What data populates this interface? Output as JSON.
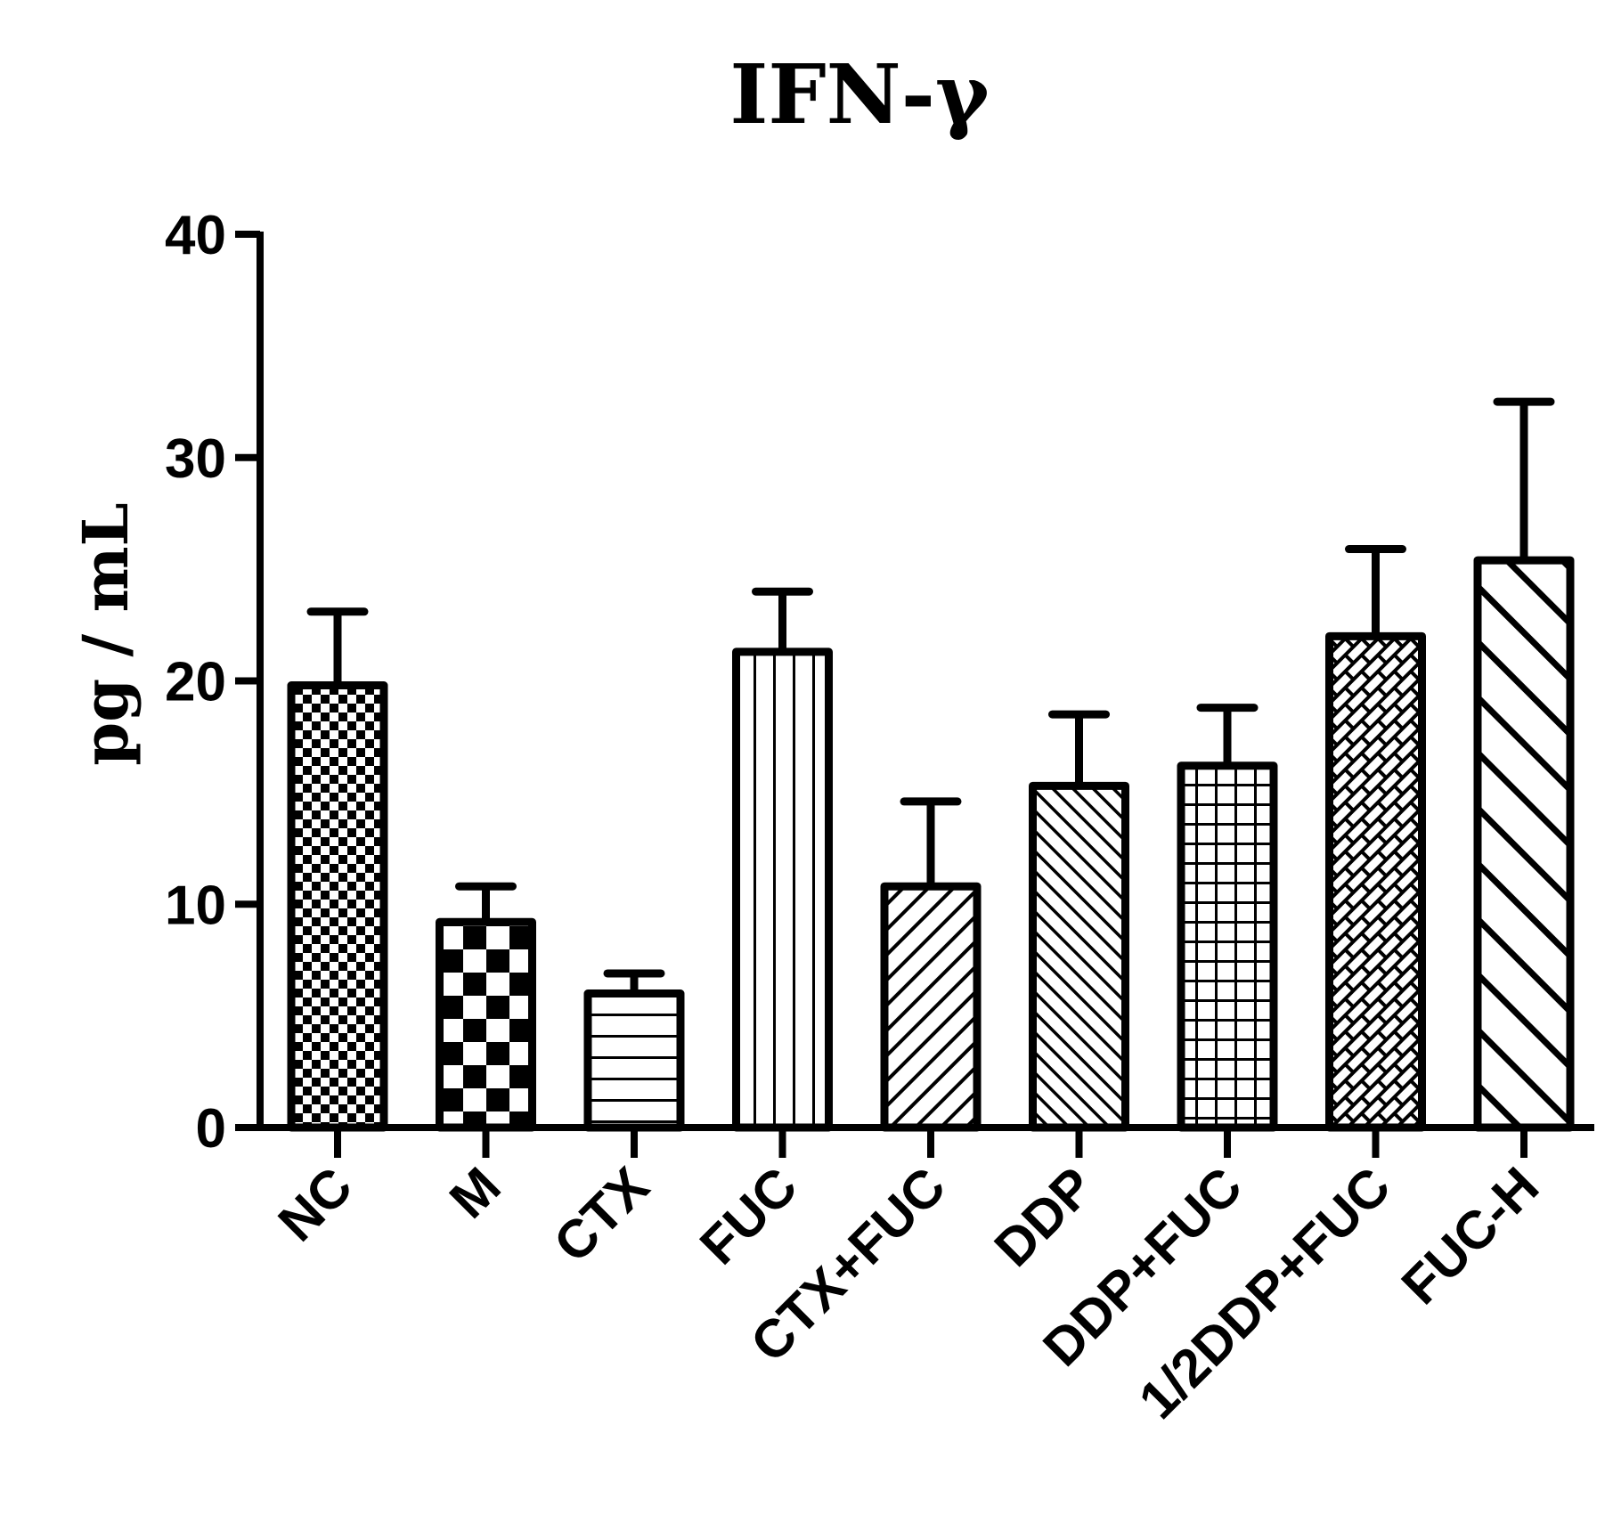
{
  "chart_data": {
    "type": "bar",
    "title": "IFN-γ",
    "xlabel": "",
    "ylabel": "pg / mL",
    "ylim": [
      0,
      40
    ],
    "yticks": [
      0,
      10,
      20,
      30,
      40
    ],
    "categories": [
      "NC",
      "M",
      "CTX",
      "FUC",
      "CTX+FUC",
      "DDP",
      "DDP+FUC",
      "1/2DDP+FUC",
      "FUC-H"
    ],
    "values": [
      19.8,
      9.2,
      6.0,
      21.3,
      10.8,
      15.3,
      16.2,
      22.0,
      25.4
    ],
    "errors": [
      3.3,
      1.6,
      0.9,
      2.7,
      3.8,
      3.2,
      2.6,
      3.9,
      7.1
    ],
    "patterns": [
      "fine-checker",
      "large-checker",
      "horizontal-lines",
      "vertical-lines",
      "diagonal-lines-up",
      "diagonal-lines-down-dense",
      "grid",
      "brick-diagonal",
      "diagonal-lines-down-wide"
    ],
    "grid": false,
    "legend": "none",
    "bar_fill": "#ffffff",
    "stroke_color": "#000000"
  }
}
